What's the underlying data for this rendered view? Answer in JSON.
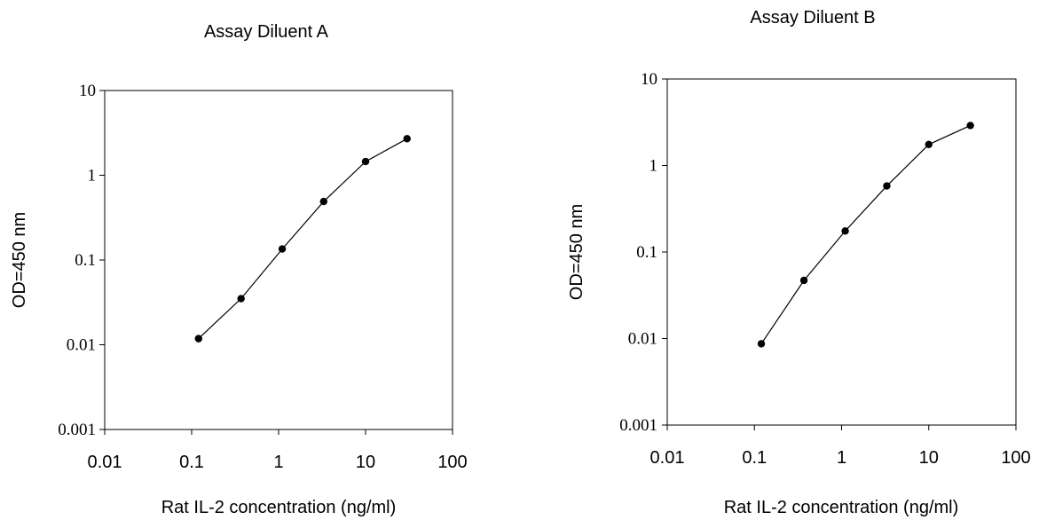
{
  "chart_data": [
    {
      "type": "scatter",
      "title": "Assay Diluent A",
      "xlabel": "Rat IL-2 concentration (ng/ml)",
      "ylabel": "OD=450 nm",
      "x_scale": "log",
      "y_scale": "log",
      "xlim": [
        0.01,
        100
      ],
      "ylim": [
        0.001,
        10
      ],
      "x_ticks": [
        "0.01",
        "0.1",
        "1",
        "10",
        "100"
      ],
      "y_ticks": [
        "10",
        "1",
        "0.1",
        "0.01",
        "0.001"
      ],
      "grid": false,
      "series": [
        {
          "x": [
            0.12,
            0.37,
            1.1,
            3.3,
            10,
            30
          ],
          "y": [
            0.0118,
            0.035,
            0.135,
            0.49,
            1.45,
            2.7
          ]
        }
      ]
    },
    {
      "type": "scatter",
      "title": "Assay Diluent B",
      "xlabel": "Rat IL-2 concentration (ng/ml)",
      "ylabel": "OD=450 nm",
      "x_scale": "log",
      "y_scale": "log",
      "xlim": [
        0.01,
        100
      ],
      "ylim": [
        0.001,
        10
      ],
      "x_ticks": [
        "0.01",
        "0.1",
        "1",
        "10",
        "100"
      ],
      "y_ticks": [
        "10",
        "1",
        "0.1",
        "0.01",
        "0.001"
      ],
      "grid": false,
      "series": [
        {
          "x": [
            0.12,
            0.37,
            1.1,
            3.3,
            10,
            30
          ],
          "y": [
            0.0087,
            0.047,
            0.175,
            0.58,
            1.75,
            2.9
          ]
        }
      ]
    }
  ]
}
